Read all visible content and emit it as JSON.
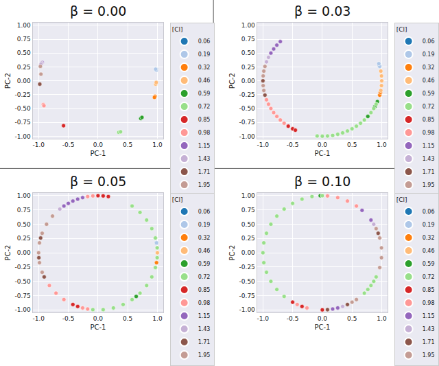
{
  "chart_data": [
    {
      "type": "scatter",
      "title": "β = 0.00",
      "x_label": "PC-1",
      "y_label": "PC-2",
      "legend_title": "[Cl]",
      "legend": "right",
      "grid": true,
      "xlim": [
        -1.1,
        1.1
      ],
      "ylim": [
        -1.05,
        1.05
      ],
      "xticks": [
        {
          "value": -1,
          "label": "-1.0"
        },
        {
          "value": -0.5,
          "label": "-0.5"
        },
        {
          "value": 0,
          "label": "0.0"
        },
        {
          "value": 0.5,
          "label": "0.5"
        },
        {
          "value": 1,
          "label": "1.0"
        }
      ],
      "yticks": [
        {
          "value": -1,
          "label": "-1.00"
        },
        {
          "value": -0.75,
          "label": "-0.75"
        },
        {
          "value": -0.5,
          "label": "-0.50"
        },
        {
          "value": -0.25,
          "label": "-0.25"
        },
        {
          "value": 0,
          "label": "0.00"
        },
        {
          "value": 0.25,
          "label": "0.25"
        },
        {
          "value": 0.5,
          "label": "0.50"
        },
        {
          "value": 0.75,
          "label": "0.75"
        },
        {
          "value": 1,
          "label": "1.00"
        }
      ],
      "series": [
        {
          "name": "0.06",
          "color": "#1f77b4",
          "x": [
            0.98
          ],
          "y": [
            0.2
          ]
        },
        {
          "name": "0.19",
          "color": "#aec7e8",
          "x": [
            0.98,
            0.97
          ],
          "y": [
            0.19,
            0.21
          ]
        },
        {
          "name": "0.32",
          "color": "#ff7f0e",
          "x": [
            0.96,
            0.95
          ],
          "y": [
            -0.28,
            -0.3
          ]
        },
        {
          "name": "0.46",
          "color": "#ffbb78",
          "x": [
            0.97,
            0.98
          ],
          "y": [
            -0.06,
            -0.03
          ]
        },
        {
          "name": "0.59",
          "color": "#2ca02c",
          "x": [
            0.72,
            0.74
          ],
          "y": [
            -0.68,
            -0.66
          ]
        },
        {
          "name": "0.72",
          "color": "#98df8a",
          "x": [
            0.35,
            0.38
          ],
          "y": [
            -0.93,
            -0.92
          ]
        },
        {
          "name": "0.85",
          "color": "#d62728",
          "x": [
            -0.58
          ],
          "y": [
            -0.81
          ]
        },
        {
          "name": "0.98",
          "color": "#ff9896",
          "x": [
            -0.92,
            -0.91
          ],
          "y": [
            -0.43,
            -0.45
          ]
        },
        {
          "name": "1.15",
          "color": "#9467bd",
          "x": [
            -0.94
          ],
          "y": [
            0.33
          ]
        },
        {
          "name": "1.43",
          "color": "#c5b0d5",
          "x": [
            -0.95,
            -0.96
          ],
          "y": [
            0.32,
            0.3
          ]
        },
        {
          "name": "1.71",
          "color": "#8c564b",
          "x": [
            -0.98
          ],
          "y": [
            -0.06
          ]
        },
        {
          "name": "1.95",
          "color": "#c49c94",
          "x": [
            -0.97,
            -0.96
          ],
          "y": [
            0.26,
            0.12
          ]
        }
      ]
    },
    {
      "type": "scatter",
      "title": "β = 0.03",
      "x_label": "PC-1",
      "y_label": "PC-2",
      "legend_title": "[Cl]",
      "legend": "right",
      "grid": true,
      "xlim": [
        -1.1,
        1.1
      ],
      "ylim": [
        -1.05,
        1.05
      ],
      "xticks": [
        {
          "value": -1,
          "label": "-1.0"
        },
        {
          "value": -0.5,
          "label": "-0.5"
        },
        {
          "value": 0,
          "label": "0.0"
        },
        {
          "value": 0.5,
          "label": "0.5"
        },
        {
          "value": 1,
          "label": "1.0"
        }
      ],
      "yticks": [
        {
          "value": -1,
          "label": "-1.00"
        },
        {
          "value": -0.75,
          "label": "-0.75"
        },
        {
          "value": -0.5,
          "label": "-0.50"
        },
        {
          "value": -0.25,
          "label": "-0.25"
        },
        {
          "value": 0,
          "label": "0.00"
        },
        {
          "value": 0.25,
          "label": "0.25"
        },
        {
          "value": 0.5,
          "label": "0.50"
        },
        {
          "value": 0.75,
          "label": "0.75"
        },
        {
          "value": 1,
          "label": "1.00"
        }
      ],
      "series": [
        {
          "name": "0.06",
          "color": "#1f77b4",
          "x": [
            0.961
          ],
          "y": [
            0.276
          ]
        },
        {
          "name": "0.19",
          "color": "#aec7e8",
          "x": [
            0.966,
            0.951
          ],
          "y": [
            0.259,
            0.309
          ]
        },
        {
          "name": "0.32",
          "color": "#ff7f0e",
          "x": [
            0.966,
            0.978
          ],
          "y": [
            -0.259,
            -0.208
          ]
        },
        {
          "name": "0.46",
          "color": "#ffbb78",
          "x": [
            0.985,
            0.996,
            1.0,
            0.996,
            0.985
          ],
          "y": [
            -0.174,
            -0.087,
            0.0,
            0.087,
            0.174
          ]
        },
        {
          "name": "0.59",
          "color": "#2ca02c",
          "x": [
            0.766,
            0.927,
            0.883
          ],
          "y": [
            -0.643,
            -0.375,
            -0.469
          ]
        },
        {
          "name": "0.72",
          "color": "#98df8a",
          "x": [
            -0.087,
            0.0,
            0.087,
            0.174,
            0.259,
            0.342,
            0.423,
            0.5,
            0.574,
            0.643,
            0.707,
            0.819,
            0.866,
            0.906
          ],
          "y": [
            -0.996,
            -1.0,
            -0.996,
            -0.985,
            -0.966,
            -0.94,
            -0.906,
            -0.866,
            -0.819,
            -0.766,
            -0.707,
            -0.574,
            -0.5,
            -0.423
          ]
        },
        {
          "name": "0.85",
          "color": "#d62728",
          "x": [
            -0.574,
            -0.5,
            -0.454
          ],
          "y": [
            -0.819,
            -0.866,
            -0.891
          ]
        },
        {
          "name": "0.98",
          "color": "#ff9896",
          "x": [
            -0.94,
            -0.906,
            -0.866,
            -0.819,
            -0.766,
            -0.707,
            -0.643
          ],
          "y": [
            -0.342,
            -0.423,
            -0.5,
            -0.574,
            -0.643,
            -0.707,
            -0.766
          ]
        },
        {
          "name": "1.15",
          "color": "#9467bd",
          "x": [
            -0.707,
            -0.766,
            -0.819,
            -0.866
          ],
          "y": [
            0.707,
            0.643,
            0.574,
            0.5
          ]
        },
        {
          "name": "1.43",
          "color": "#c5b0d5",
          "x": [
            -0.906,
            -0.94
          ],
          "y": [
            0.423,
            0.342
          ]
        },
        {
          "name": "1.71",
          "color": "#8c564b",
          "x": [
            -1.0,
            -0.966
          ],
          "y": [
            0.0,
            -0.259
          ]
        },
        {
          "name": "1.95",
          "color": "#c49c94",
          "x": [
            -0.966,
            -0.985,
            -0.996,
            -0.996,
            -0.985
          ],
          "y": [
            0.259,
            0.174,
            0.087,
            -0.087,
            -0.174
          ]
        }
      ]
    },
    {
      "type": "scatter",
      "title": "β = 0.05",
      "x_label": "PC-1",
      "y_label": "PC-2",
      "legend_title": "[Cl]",
      "legend": "right",
      "grid": true,
      "xlim": [
        -1.1,
        1.1
      ],
      "ylim": [
        -1.05,
        1.05
      ],
      "xticks": [
        {
          "value": -1,
          "label": "-1.0"
        },
        {
          "value": -0.5,
          "label": "-0.5"
        },
        {
          "value": 0,
          "label": "0.0"
        },
        {
          "value": 0.5,
          "label": "0.5"
        },
        {
          "value": 1,
          "label": "1.0"
        }
      ],
      "yticks": [
        {
          "value": -1,
          "label": "-1.00"
        },
        {
          "value": -0.75,
          "label": "-0.75"
        },
        {
          "value": -0.5,
          "label": "-0.50"
        },
        {
          "value": -0.25,
          "label": "-0.25"
        },
        {
          "value": 0,
          "label": "0.00"
        },
        {
          "value": 0.25,
          "label": "0.25"
        },
        {
          "value": 0.5,
          "label": "0.50"
        },
        {
          "value": 0.75,
          "label": "0.75"
        },
        {
          "value": 1,
          "label": "1.00"
        }
      ],
      "series": [
        {
          "name": "0.06",
          "color": "#1f77b4",
          "x": [
            0.985
          ],
          "y": [
            0.174
          ]
        },
        {
          "name": "0.19",
          "color": "#aec7e8",
          "x": [
            0.985
          ],
          "y": [
            0.174
          ]
        },
        {
          "name": "0.32",
          "color": "#ff7f0e",
          "x": [
            0.985
          ],
          "y": [
            -0.174
          ]
        },
        {
          "name": "0.46",
          "color": "#ffbb78",
          "x": [
            1.0
          ],
          "y": [
            0.0
          ]
        },
        {
          "name": "0.59",
          "color": "#2ca02c",
          "x": [
            0.643
          ],
          "y": [
            -0.766
          ]
        },
        {
          "name": "0.72",
          "color": "#98df8a",
          "x": [
            0.574,
            0.707,
            0.819,
            0.906,
            0.966,
            0.996,
            0.996,
            0.966,
            0.906,
            0.819,
            0.707,
            0.574,
            0.423,
            0.259,
            0.087,
            -0.087
          ],
          "y": [
            0.819,
            0.707,
            0.574,
            0.423,
            0.259,
            0.087,
            -0.087,
            -0.259,
            -0.423,
            -0.574,
            -0.707,
            -0.819,
            -0.906,
            -0.966,
            -0.996,
            -0.996
          ]
        },
        {
          "name": "0.85",
          "color": "#d62728",
          "x": [
            0.174,
            0.087,
            0.0,
            -0.423,
            -0.342
          ],
          "y": [
            0.985,
            0.996,
            1.0,
            -0.906,
            -0.94
          ]
        },
        {
          "name": "0.98",
          "color": "#ff9896",
          "x": [
            -0.087,
            -0.174,
            -0.819,
            -0.707,
            -0.574,
            -0.259,
            -0.174
          ],
          "y": [
            0.996,
            0.985,
            -0.574,
            -0.707,
            -0.819,
            -0.966,
            -0.985
          ]
        },
        {
          "name": "1.15",
          "color": "#9467bd",
          "x": [
            -0.259,
            -0.342,
            -0.423,
            -0.5,
            -0.574
          ],
          "y": [
            0.966,
            0.94,
            0.906,
            0.866,
            0.819
          ]
        },
        {
          "name": "1.43",
          "color": "#c5b0d5",
          "x": [
            -0.643
          ],
          "y": [
            0.766
          ]
        },
        {
          "name": "1.71",
          "color": "#8c564b",
          "x": [
            -0.966,
            -0.996,
            -0.906
          ],
          "y": [
            0.259,
            -0.087,
            -0.423
          ]
        },
        {
          "name": "1.95",
          "color": "#c49c94",
          "x": [
            -0.766,
            -0.866,
            -0.94,
            -0.985,
            -1.0,
            -0.985,
            -0.94
          ],
          "y": [
            0.643,
            0.5,
            0.342,
            0.174,
            0.0,
            -0.174,
            -0.342
          ]
        }
      ]
    },
    {
      "type": "scatter",
      "title": "β = 0.10",
      "x_label": "PC-1",
      "y_label": "PC-2",
      "legend_title": "[Cl]",
      "legend": "right",
      "grid": true,
      "xlim": [
        -1.1,
        1.1
      ],
      "ylim": [
        -1.05,
        1.05
      ],
      "xticks": [
        {
          "value": -1,
          "label": "-1.0"
        },
        {
          "value": -0.5,
          "label": "-0.5"
        },
        {
          "value": 0,
          "label": "0.0"
        },
        {
          "value": 0.5,
          "label": "0.5"
        },
        {
          "value": 1,
          "label": "1.0"
        }
      ],
      "yticks": [
        {
          "value": -1,
          "label": "-1.00"
        },
        {
          "value": -0.75,
          "label": "-0.75"
        },
        {
          "value": -0.5,
          "label": "-0.50"
        },
        {
          "value": -0.25,
          "label": "-0.25"
        },
        {
          "value": 0,
          "label": "0.00"
        },
        {
          "value": 0.25,
          "label": "0.25"
        },
        {
          "value": 0.5,
          "label": "0.50"
        },
        {
          "value": 0.75,
          "label": "0.75"
        },
        {
          "value": 1,
          "label": "1.00"
        }
      ],
      "series": [
        {
          "name": "0.06",
          "color": "#1f77b4",
          "x": [
            0.0
          ],
          "y": [
            1.0
          ]
        },
        {
          "name": "0.19",
          "color": "#aec7e8",
          "x": [
            0.0
          ],
          "y": [
            1.0
          ]
        },
        {
          "name": "0.32",
          "color": "#ff7f0e",
          "x": [
            0.0
          ],
          "y": [
            1.0
          ]
        },
        {
          "name": "0.46",
          "color": "#ffbb78",
          "x": [
            0.0
          ],
          "y": [
            1.0
          ]
        },
        {
          "name": "0.59",
          "color": "#2ca02c",
          "x": [
            -0.035
          ],
          "y": [
            0.999
          ]
        },
        {
          "name": "0.72",
          "color": "#98df8a",
          "x": [
            0.0,
            -0.174,
            -0.342,
            -0.5,
            -0.643,
            -0.766,
            -0.866,
            -0.94,
            -0.985,
            -1.0,
            -0.985,
            -0.94,
            -0.866,
            -0.766,
            -0.643,
            0.707,
            0.766,
            0.819,
            0.866,
            0.906
          ],
          "y": [
            1.0,
            0.985,
            0.94,
            0.866,
            0.766,
            0.643,
            0.5,
            0.342,
            0.174,
            0.0,
            -0.174,
            -0.342,
            -0.5,
            -0.643,
            -0.766,
            -0.707,
            -0.643,
            -0.574,
            -0.5,
            -0.423
          ]
        },
        {
          "name": "0.85",
          "color": "#d62728",
          "x": [
            -0.5,
            -0.342,
            0.0
          ],
          "y": [
            -0.866,
            -0.94,
            -1.0
          ]
        },
        {
          "name": "0.98",
          "color": "#ff9896",
          "x": [
            -0.423,
            -0.259,
            0.087,
            0.259,
            0.423,
            0.574
          ],
          "y": [
            -0.906,
            -0.966,
            0.996,
            0.966,
            0.906,
            0.819
          ]
        },
        {
          "name": "1.15",
          "color": "#9467bd",
          "x": [
            0.669,
            0.174,
            0.259,
            0.819
          ],
          "y": [
            0.743,
            -0.985,
            -0.966,
            0.574
          ]
        },
        {
          "name": "1.43",
          "color": "#c5b0d5",
          "x": [
            0.866,
            0.342
          ],
          "y": [
            0.5,
            -0.94
          ]
        },
        {
          "name": "1.71",
          "color": "#8c564b",
          "x": [
            0.94,
            0.087,
            0.423
          ],
          "y": [
            0.342,
            -0.996,
            -0.906
          ]
        },
        {
          "name": "1.95",
          "color": "#c49c94",
          "x": [
            0.906,
            0.966,
            0.996,
            0.996,
            0.966,
            0.5,
            0.574
          ],
          "y": [
            0.423,
            0.259,
            0.087,
            -0.087,
            -0.259,
            -0.866,
            -0.819
          ]
        }
      ]
    }
  ]
}
